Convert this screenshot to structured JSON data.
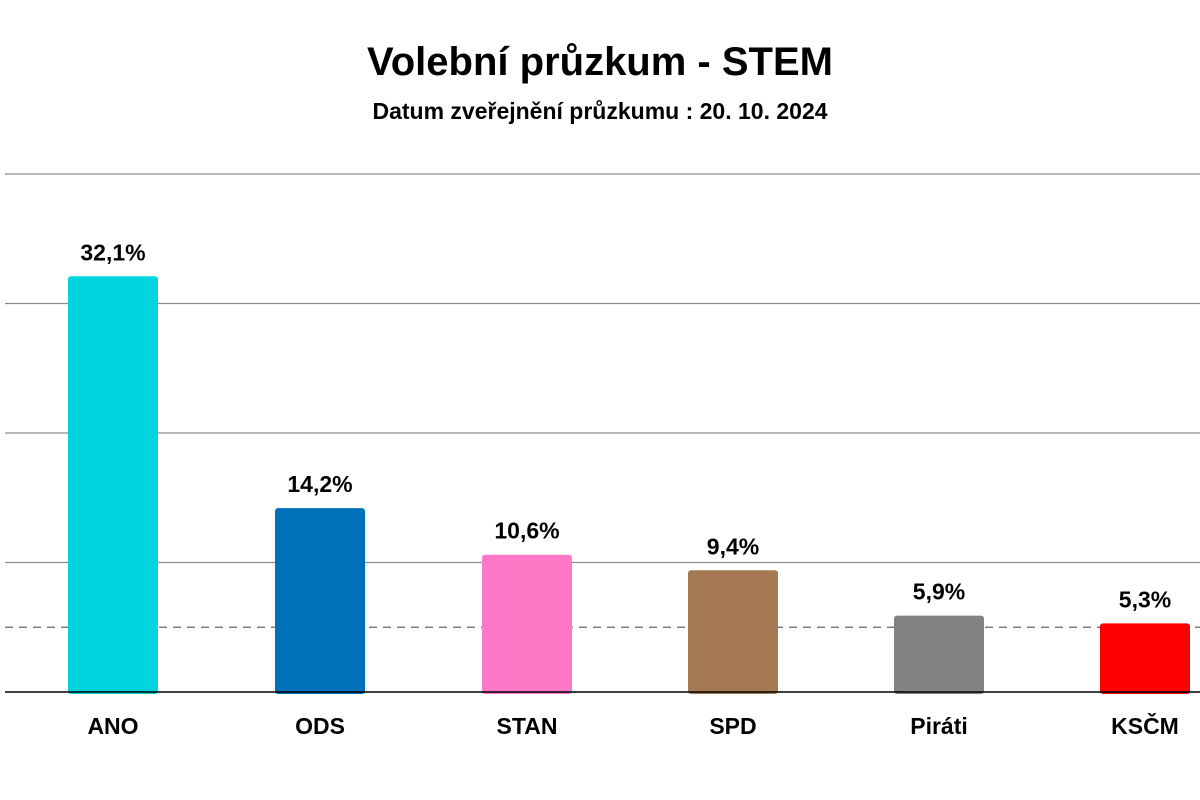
{
  "title": "Volební průzkum - STEM",
  "subtitle": "Datum zveřejnění průzkumu : 20. 10. 2024",
  "chart_data": {
    "type": "bar",
    "title": "Volební průzkum - STEM",
    "subtitle": "Datum zveřejnění průzkumu : 20. 10. 2024",
    "categories": [
      "ANO",
      "ODS",
      "STAN",
      "SPD",
      "Piráti",
      "KSČM"
    ],
    "values": [
      32.1,
      14.2,
      10.6,
      9.4,
      5.9,
      5.3
    ],
    "value_labels": [
      "32,1%",
      "14,2%",
      "10,6%",
      "9,4%",
      "5,9%",
      "5,3%"
    ],
    "colors": [
      "#00d4de",
      "#0070bb",
      "#ff78c8",
      "#a57a52",
      "#828282",
      "#ff0000"
    ],
    "ylim": [
      0,
      40
    ],
    "gridlines": [
      10,
      20,
      30,
      40
    ],
    "threshold": 5,
    "grid": true,
    "legend": "none"
  }
}
